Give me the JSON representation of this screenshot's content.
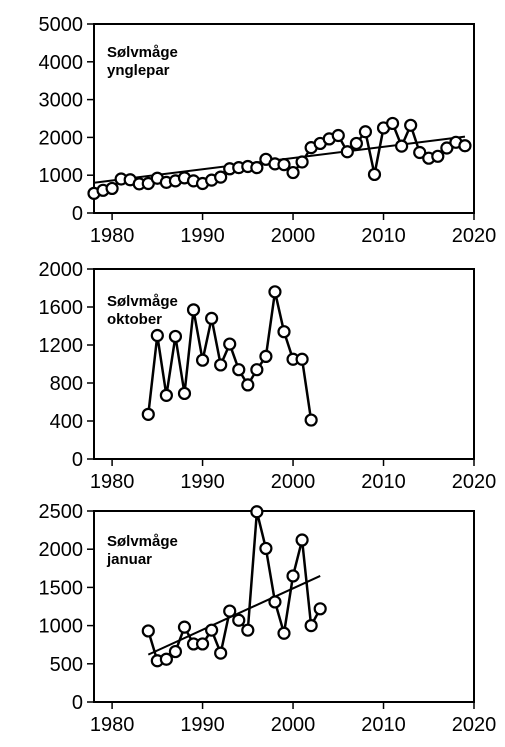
{
  "chart_data": [
    {
      "type": "line",
      "title_lines": [
        "Sølvmåge",
        "ynglepar"
      ],
      "xlim": [
        1978,
        2020
      ],
      "ylim": [
        0,
        5000
      ],
      "x_ticks": [
        1980,
        1990,
        2000,
        2010,
        2020
      ],
      "y_ticks": [
        0,
        1000,
        2000,
        3000,
        4000,
        5000
      ],
      "trend": {
        "x": [
          1978,
          2019
        ],
        "y": [
          800,
          2020
        ]
      },
      "series": [
        {
          "x": [
            1978,
            1979,
            1980,
            1981,
            1982,
            1983,
            1984,
            1985,
            1986,
            1987,
            1988,
            1989,
            1990,
            1991,
            1992,
            1993,
            1994,
            1995,
            1996,
            1997,
            1998,
            1999,
            2000,
            2001,
            2002,
            2003,
            2004,
            2005,
            2006,
            2007,
            2008,
            2009,
            2010,
            2011,
            2012,
            2013,
            2014,
            2015,
            2016,
            2017,
            2018,
            2019
          ],
          "y": [
            520,
            600,
            650,
            900,
            880,
            770,
            780,
            920,
            810,
            850,
            930,
            850,
            780,
            870,
            950,
            1170,
            1200,
            1230,
            1200,
            1420,
            1300,
            1280,
            1070,
            1350,
            1730,
            1840,
            1960,
            2050,
            1620,
            1840,
            2150,
            1020,
            2250,
            2370,
            1770,
            2320,
            1600,
            1450,
            1500,
            1720,
            1870,
            1780
          ]
        }
      ]
    },
    {
      "type": "line",
      "title_lines": [
        "Sølvmåge",
        "oktober"
      ],
      "xlim": [
        1978,
        2020
      ],
      "ylim": [
        0,
        2000
      ],
      "x_ticks": [
        1980,
        1990,
        2000,
        2010,
        2020
      ],
      "y_ticks": [
        0,
        400,
        800,
        1200,
        1600,
        2000
      ],
      "series": [
        {
          "x": [
            1984,
            1985,
            1986,
            1987,
            1988,
            1989,
            1990,
            1991,
            1992,
            1993,
            1994,
            1995,
            1996,
            1997,
            1998,
            1999,
            2000,
            2001,
            2002
          ],
          "y": [
            470,
            1300,
            670,
            1290,
            690,
            1570,
            1040,
            1480,
            990,
            1210,
            940,
            780,
            940,
            1080,
            1760,
            1340,
            1050,
            1050,
            410
          ]
        }
      ]
    },
    {
      "type": "line",
      "title_lines": [
        "Sølvmåge",
        "januar"
      ],
      "xlim": [
        1978,
        2020
      ],
      "ylim": [
        0,
        2500
      ],
      "x_ticks": [
        1980,
        1990,
        2000,
        2010,
        2020
      ],
      "y_ticks": [
        0,
        500,
        1000,
        1500,
        2000,
        2500
      ],
      "trend": {
        "x": [
          1984,
          2003
        ],
        "y": [
          620,
          1650
        ]
      },
      "series": [
        {
          "x": [
            1984,
            1985,
            1986,
            1987,
            1988,
            1989,
            1990,
            1991,
            1992,
            1993,
            1994,
            1995,
            1996,
            1997,
            1998,
            1999,
            2000,
            2001,
            2002,
            2003
          ],
          "y": [
            930,
            540,
            560,
            660,
            980,
            760,
            760,
            940,
            640,
            1190,
            1070,
            940,
            2490,
            2010,
            1310,
            900,
            1650,
            2120,
            1000,
            1220
          ]
        }
      ]
    }
  ]
}
